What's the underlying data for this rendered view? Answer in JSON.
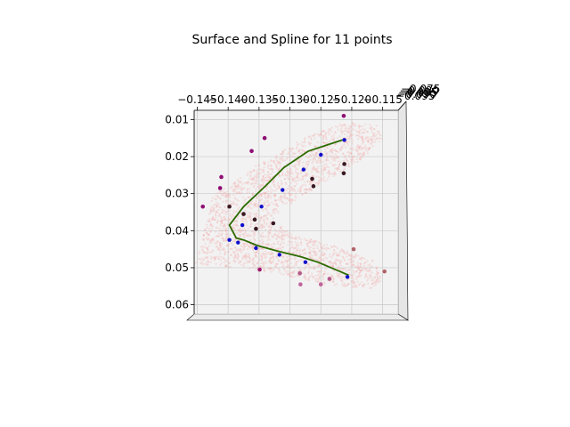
{
  "chart_data": {
    "type": "scatter",
    "projection": "3d",
    "title": "Surface and Spline for 11 points",
    "xlabel": "",
    "ylabel": "",
    "zlabel": "",
    "xlim": [
      -0.1455,
      -0.1125
    ],
    "ylim": [
      0.0075,
      0.0625
    ],
    "x_ticks": [
      -0.145,
      -0.14,
      -0.135,
      -0.13,
      -0.125,
      -0.12,
      -0.115
    ],
    "x_tick_labels": [
      "−0.145",
      "−0.140",
      "−0.135",
      "−0.130",
      "−0.125",
      "−0.120",
      "−0.115"
    ],
    "y_ticks": [
      0.01,
      0.02,
      0.03,
      0.04,
      0.05,
      0.06
    ],
    "y_tick_labels": [
      "0.01",
      "0.02",
      "0.03",
      "0.04",
      "0.05",
      "0.06"
    ],
    "z_tick_labels": [
      "−0.075",
      "−0.080",
      "−0.085",
      "−0.090",
      "−0.095"
    ],
    "grid": true,
    "colors": {
      "surface": "#f4a6a6",
      "spline": "#2c6b00",
      "spline_points": "#1010cc",
      "pane": "#f2f2f2",
      "grid": "#c8c8c8"
    },
    "surface": {
      "description": "sparse translucent point cloud shaped like an arrowhead",
      "outline": [
        [
          -0.1395,
          0.0275
        ],
        [
          -0.1355,
          0.0225
        ],
        [
          -0.1305,
          0.0175
        ],
        [
          -0.126,
          0.0135
        ],
        [
          -0.1205,
          0.0105
        ],
        [
          -0.116,
          0.0115
        ],
        [
          -0.115,
          0.015
        ],
        [
          -0.1185,
          0.021
        ],
        [
          -0.1245,
          0.027
        ],
        [
          -0.131,
          0.034
        ],
        [
          -0.133,
          0.0375
        ],
        [
          -0.129,
          0.041
        ],
        [
          -0.122,
          0.0445
        ],
        [
          -0.1165,
          0.048
        ],
        [
          -0.115,
          0.053
        ],
        [
          -0.117,
          0.056
        ],
        [
          -0.124,
          0.0545
        ],
        [
          -0.131,
          0.052
        ],
        [
          -0.139,
          0.05
        ],
        [
          -0.1455,
          0.049
        ],
        [
          -0.1445,
          0.044
        ],
        [
          -0.143,
          0.035
        ],
        [
          -0.1425,
          0.03
        ]
      ]
    },
    "spline": {
      "x": [
        -0.1215,
        -0.127,
        -0.131,
        -0.134,
        -0.1375,
        -0.1398,
        -0.1387,
        -0.1375,
        -0.1353,
        -0.132,
        -0.1283,
        -0.1255,
        -0.1205
      ],
      "y": [
        0.0155,
        0.0185,
        0.023,
        0.028,
        0.0335,
        0.0385,
        0.042,
        0.0425,
        0.044,
        0.0455,
        0.047,
        0.0485,
        0.052
      ]
    },
    "spline_points": {
      "x": [
        -0.1212,
        -0.125,
        -0.1278,
        -0.1312,
        -0.1346,
        -0.1377,
        -0.1398,
        -0.1384,
        -0.1355,
        -0.1317,
        -0.1275,
        -0.1207
      ],
      "y": [
        0.0155,
        0.0195,
        0.0235,
        0.029,
        0.0335,
        0.0385,
        0.0425,
        0.0432,
        0.0447,
        0.0465,
        0.0485,
        0.0525
      ]
    },
    "scatter_points": [
      {
        "x": -0.1213,
        "y": 0.009,
        "color": "#8e0e72"
      },
      {
        "x": -0.1341,
        "y": 0.015,
        "color": "#8e0e72"
      },
      {
        "x": -0.1362,
        "y": 0.0185,
        "color": "#8e0e72"
      },
      {
        "x": -0.1411,
        "y": 0.0255,
        "color": "#8e0e72"
      },
      {
        "x": -0.1413,
        "y": 0.0285,
        "color": "#8e0e72"
      },
      {
        "x": -0.1441,
        "y": 0.0335,
        "color": "#8e0e72"
      },
      {
        "x": -0.1212,
        "y": 0.022,
        "color": "#3a1a24"
      },
      {
        "x": -0.1213,
        "y": 0.0245,
        "color": "#3a1a24"
      },
      {
        "x": -0.1264,
        "y": 0.026,
        "color": "#3a1a24"
      },
      {
        "x": -0.1262,
        "y": 0.028,
        "color": "#3a1a24"
      },
      {
        "x": -0.1398,
        "y": 0.0335,
        "color": "#3a1a24"
      },
      {
        "x": -0.1375,
        "y": 0.0355,
        "color": "#3a1a24"
      },
      {
        "x": -0.1357,
        "y": 0.037,
        "color": "#3a1a24"
      },
      {
        "x": -0.1327,
        "y": 0.038,
        "color": "#3a1a24"
      },
      {
        "x": -0.1355,
        "y": 0.0395,
        "color": "#3a1a24"
      },
      {
        "x": -0.1197,
        "y": 0.045,
        "color": "#b0636a"
      },
      {
        "x": -0.1147,
        "y": 0.051,
        "color": "#b0636a"
      },
      {
        "x": -0.1349,
        "y": 0.0505,
        "color": "#9c1a70"
      },
      {
        "x": -0.1284,
        "y": 0.0515,
        "color": "#b35a8a"
      },
      {
        "x": -0.1236,
        "y": 0.053,
        "color": "#b35a8a"
      },
      {
        "x": -0.1283,
        "y": 0.0545,
        "color": "#c0649a"
      },
      {
        "x": -0.125,
        "y": 0.0545,
        "color": "#c0649a"
      }
    ]
  }
}
